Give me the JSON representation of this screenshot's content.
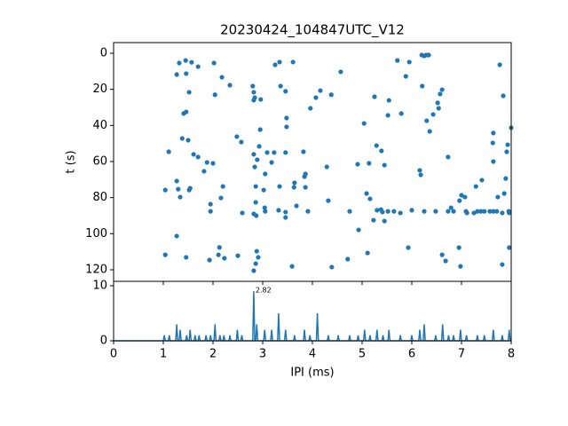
{
  "chart_data": [
    {
      "type": "scatter",
      "title": "20230424_104847UTC_V12",
      "ylabel": "t (s)",
      "color": "#1f77b4",
      "x": [
        1.32,
        1.45,
        1.57,
        1.7,
        1.27,
        1.46,
        1.52,
        2.02,
        2.18,
        2.04,
        2.34,
        2.8,
        2.82,
        2.84,
        2.82,
        2.96,
        3.25,
        3.34,
        3.61,
        3.36,
        3.46,
        3.48,
        3.48,
        4.07,
        4.16,
        4.38,
        4.57,
        3.96,
        1.41,
        1.46,
        1.38,
        1.5,
        1.61,
        1.11,
        1.7,
        1.88,
        1.82,
        2.0,
        2.48,
        2.57,
        2.95,
        2.93,
        2.82,
        2.89,
        2.84,
        3.09,
        3.23,
        3.18,
        3.05,
        3.46,
        3.82,
        3.86,
        4.29,
        5.04,
        5.29,
        5.39,
        5.45,
        5.14,
        4.91,
        5.25,
        5.54,
        5.52,
        5.71,
        5.79,
        5.95,
        5.88,
        6.21,
        6.25,
        6.29,
        6.34,
        6.2,
        6.57,
        6.61,
        6.52,
        6.54,
        6.43,
        6.3,
        6.36,
        7.64,
        7.63,
        7.77,
        7.84,
        7.93,
        8.0,
        7.64,
        7.91,
        7.89,
        7.86,
        7.73,
        7.41,
        7.29,
        7.0,
        7.07,
        6.96,
        6.16,
        6.18,
        6.73,
        1.04,
        1.27,
        1.3,
        1.52,
        1.54,
        1.34,
        1.95,
        1.95,
        2.2,
        2.16,
        2.59,
        2.86,
        3.02,
        2.86,
        2.82,
        2.87,
        3.05,
        3.04,
        3.34,
        3.32,
        3.46,
        3.46,
        3.64,
        3.63,
        3.84,
        3.86,
        3.68,
        3.91,
        4.32,
        4.75,
        5.09,
        5.16,
        5.3,
        5.38,
        5.41,
        5.52,
        5.64,
        5.77,
        6.0,
        4.93,
        5.23,
        5.45,
        6.25,
        6.48,
        6.73,
        6.79,
        6.84,
        7.09,
        7.11,
        7.25,
        7.32,
        7.39,
        7.46,
        7.57,
        7.64,
        7.71,
        7.82,
        7.95,
        7.96,
        1.27,
        1.04,
        1.46,
        1.93,
        2.13,
        2.11,
        2.23,
        2.5,
        2.88,
        2.91,
        2.82,
        2.86,
        3.59,
        4.39,
        4.71,
        5.11,
        5.93,
        6.61,
        6.95,
        6.68,
        6.98,
        7.82,
        7.96
      ],
      "values": [
        5.4,
        4,
        5,
        7.4,
        11.8,
        11.3,
        21.6,
        5.4,
        13.3,
        23,
        17.7,
        18.2,
        21.6,
        24.6,
        26,
        25.6,
        6.4,
        4.9,
        4.9,
        18.2,
        21.1,
        35.9,
        40.8,
        24.6,
        20.7,
        23,
        10.3,
        30.5,
        33.4,
        32.5,
        47.2,
        48.2,
        56,
        54.6,
        57.5,
        60.5,
        65.4,
        61,
        46.2,
        49.2,
        42.3,
        51.6,
        56,
        59,
        63,
        55,
        55,
        60.5,
        66.9,
        55,
        54.6,
        66.9,
        63,
        38.9,
        51.2,
        54.1,
        62,
        61,
        61.5,
        24.1,
        26.1,
        34.4,
        4,
        33.4,
        4.9,
        12.8,
        18.2,
        1.5,
        1,
        1,
        1,
        22.6,
        20.2,
        27.5,
        30.5,
        33.9,
        37.4,
        43.3,
        44.2,
        49.7,
        6.4,
        23.6,
        50.7,
        41.3,
        60,
        54.6,
        69.4,
        77.7,
        79.7,
        70.3,
        73.8,
        78.7,
        79.7,
        81.7,
        64.9,
        67.4,
        57.5,
        75.8,
        70.8,
        75.3,
        75.8,
        74.8,
        79.7,
        83.6,
        87.6,
        73.8,
        80.2,
        88.5,
        73.8,
        75.8,
        82.6,
        89,
        90,
        87.6,
        85.6,
        73.8,
        87,
        88,
        91,
        71.8,
        74.3,
        68.4,
        74.3,
        84.6,
        87.6,
        81.7,
        87.6,
        77.7,
        80.7,
        87,
        86.6,
        88,
        87.6,
        87.6,
        88.5,
        87,
        97.9,
        92.5,
        93,
        87.6,
        87.6,
        87.6,
        85.6,
        87.6,
        87.6,
        88.5,
        88.5,
        87.6,
        87.6,
        87.6,
        87.6,
        87.6,
        87.6,
        88.5,
        87.6,
        88.5,
        101.3,
        111.7,
        113.1,
        114.6,
        107.6,
        111.7,
        113.6,
        112.2,
        109.7,
        113.1,
        120.5,
        116.6,
        118.1,
        118.5,
        114.1,
        110.7,
        107.7,
        111.7,
        107.7,
        115.1,
        118.1,
        117.1,
        107.7
      ],
      "xlim": [
        0,
        8
      ],
      "xticks": [
        0,
        1,
        2,
        3,
        4,
        5,
        6,
        7,
        8
      ],
      "ylim": [
        126.4,
        -5.9
      ],
      "yticks": [
        0,
        20,
        40,
        60,
        80,
        100,
        120
      ]
    },
    {
      "type": "line",
      "xlabel": "IPI (ms)",
      "color": "#1f77b4",
      "x": [
        0,
        1.0,
        1.02,
        1.04,
        1.1,
        1.12,
        1.14,
        1.25,
        1.27,
        1.29,
        1.32,
        1.34,
        1.36,
        1.45,
        1.47,
        1.49,
        1.52,
        1.54,
        1.56,
        1.62,
        1.64,
        1.66,
        1.7,
        1.72,
        1.74,
        1.84,
        1.86,
        1.88,
        1.93,
        1.95,
        1.97,
        2.02,
        2.04,
        2.06,
        2.12,
        2.14,
        2.16,
        2.2,
        2.22,
        2.24,
        2.32,
        2.34,
        2.36,
        2.47,
        2.49,
        2.51,
        2.56,
        2.58,
        2.6,
        2.8,
        2.82,
        2.84,
        2.86,
        2.88,
        2.9,
        3.02,
        3.04,
        3.06,
        3.16,
        3.18,
        3.2,
        3.3,
        3.32,
        3.34,
        3.44,
        3.46,
        3.48,
        3.62,
        3.64,
        3.66,
        3.82,
        3.84,
        3.86,
        3.93,
        3.95,
        3.97,
        4.08,
        4.1,
        4.12,
        4.3,
        4.32,
        4.34,
        4.5,
        4.52,
        4.54,
        4.73,
        4.75,
        4.77,
        4.9,
        4.92,
        4.94,
        5.03,
        5.05,
        5.07,
        5.14,
        5.16,
        5.18,
        5.28,
        5.3,
        5.32,
        5.4,
        5.42,
        5.44,
        5.52,
        5.54,
        5.56,
        5.75,
        5.77,
        5.79,
        5.98,
        6.0,
        6.02,
        6.14,
        6.16,
        6.18,
        6.23,
        6.25,
        6.27,
        6.46,
        6.48,
        6.5,
        6.6,
        6.62,
        6.64,
        6.72,
        6.74,
        6.76,
        6.82,
        6.84,
        6.86,
        6.96,
        6.98,
        7.0,
        7.08,
        7.1,
        7.12,
        7.3,
        7.32,
        7.34,
        7.44,
        7.46,
        7.48,
        7.62,
        7.64,
        7.66,
        7.8,
        7.82,
        7.84,
        7.94,
        7.96,
        7.98,
        8.0
      ],
      "values": [
        0,
        0,
        1,
        0,
        0,
        1,
        0,
        0,
        3,
        0,
        0,
        2,
        0,
        0,
        1,
        0,
        0,
        2,
        0,
        0,
        1,
        0,
        0,
        1,
        0,
        0,
        1,
        0,
        0,
        1,
        0,
        0,
        3,
        0,
        0,
        1,
        0,
        0,
        1,
        0,
        0,
        1,
        0,
        0,
        2,
        0,
        0,
        1,
        0,
        0,
        9,
        0,
        0,
        3,
        0,
        0,
        2,
        0,
        0,
        2,
        0,
        0,
        5,
        0,
        0,
        2,
        0,
        0,
        1,
        0,
        0,
        2,
        0,
        0,
        1,
        0,
        0,
        5,
        0,
        0,
        1,
        0,
        0,
        1,
        0,
        0,
        1,
        0,
        0,
        1,
        0,
        0,
        2,
        0,
        0,
        1,
        0,
        0,
        2,
        0,
        0,
        1,
        0,
        0,
        2,
        0,
        0,
        1,
        0,
        0,
        1,
        0,
        0,
        2,
        0,
        0,
        3,
        0,
        0,
        1,
        0,
        0,
        3,
        0,
        0,
        1,
        0,
        0,
        1,
        0,
        0,
        2,
        0,
        0,
        1,
        0,
        0,
        1,
        0,
        0,
        1,
        0,
        0,
        2,
        0,
        0,
        1,
        0,
        0,
        2,
        0,
        0
      ],
      "annotations": [
        {
          "text": "2.82",
          "x": 2.82,
          "y": 9
        }
      ],
      "xlim": [
        0,
        8
      ],
      "xticks": [
        0,
        1,
        2,
        3,
        4,
        5,
        6,
        7,
        8
      ],
      "ylim": [
        0,
        10.8
      ],
      "yticks": [
        0,
        10
      ]
    }
  ]
}
